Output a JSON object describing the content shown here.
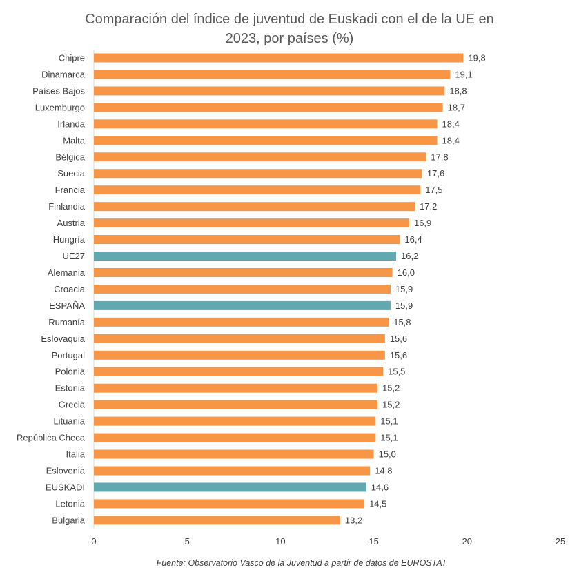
{
  "chart_data": {
    "type": "bar",
    "orientation": "horizontal",
    "title_lines": [
      "Comparación del índice de juventud de Euskadi con el de la UE en",
      "2023, por países (%)"
    ],
    "categories": [
      "Chipre",
      "Dinamarca",
      "Países Bajos",
      "Luxemburgo",
      "Irlanda",
      "Malta",
      "Bélgica",
      "Suecia",
      "Francia",
      "Finlandia",
      "Austria",
      "Hungría",
      "UE27",
      "Alemania",
      "Croacia",
      "ESPAÑA",
      "Rumanía",
      "Eslovaquia",
      "Portugal",
      "Polonia",
      "Estonia",
      "Grecia",
      "Lituania",
      "República Checa",
      "Italia",
      "Eslovenia",
      "EUSKADI",
      "Letonia",
      "Bulgaria"
    ],
    "values": [
      19.8,
      19.1,
      18.8,
      18.7,
      18.4,
      18.4,
      17.8,
      17.6,
      17.5,
      17.2,
      16.9,
      16.4,
      16.2,
      16.0,
      15.9,
      15.9,
      15.8,
      15.6,
      15.6,
      15.5,
      15.2,
      15.2,
      15.1,
      15.1,
      15.0,
      14.8,
      14.6,
      14.5,
      13.2
    ],
    "labels": [
      "19,8",
      "19,1",
      "18,8",
      "18,7",
      "18,4",
      "18,4",
      "17,8",
      "17,6",
      "17,5",
      "17,2",
      "16,9",
      "16,4",
      "16,2",
      "16,0",
      "15,9",
      "15,9",
      "15,8",
      "15,6",
      "15,6",
      "15,5",
      "15,2",
      "15,2",
      "15,1",
      "15,1",
      "15,0",
      "14,8",
      "14,6",
      "14,5",
      "13,2"
    ],
    "highlighted": [
      "UE27",
      "ESPAÑA",
      "EUSKADI"
    ],
    "xlim": [
      0,
      25
    ],
    "xticks": [
      0,
      5,
      10,
      15,
      20,
      25
    ],
    "grid": false,
    "colors": {
      "default": "#F79646",
      "highlight": "#62A8B0"
    }
  },
  "footer": "Fuente: Observatorio Vasco de la Juventud a partir de datos de EUROSTAT"
}
